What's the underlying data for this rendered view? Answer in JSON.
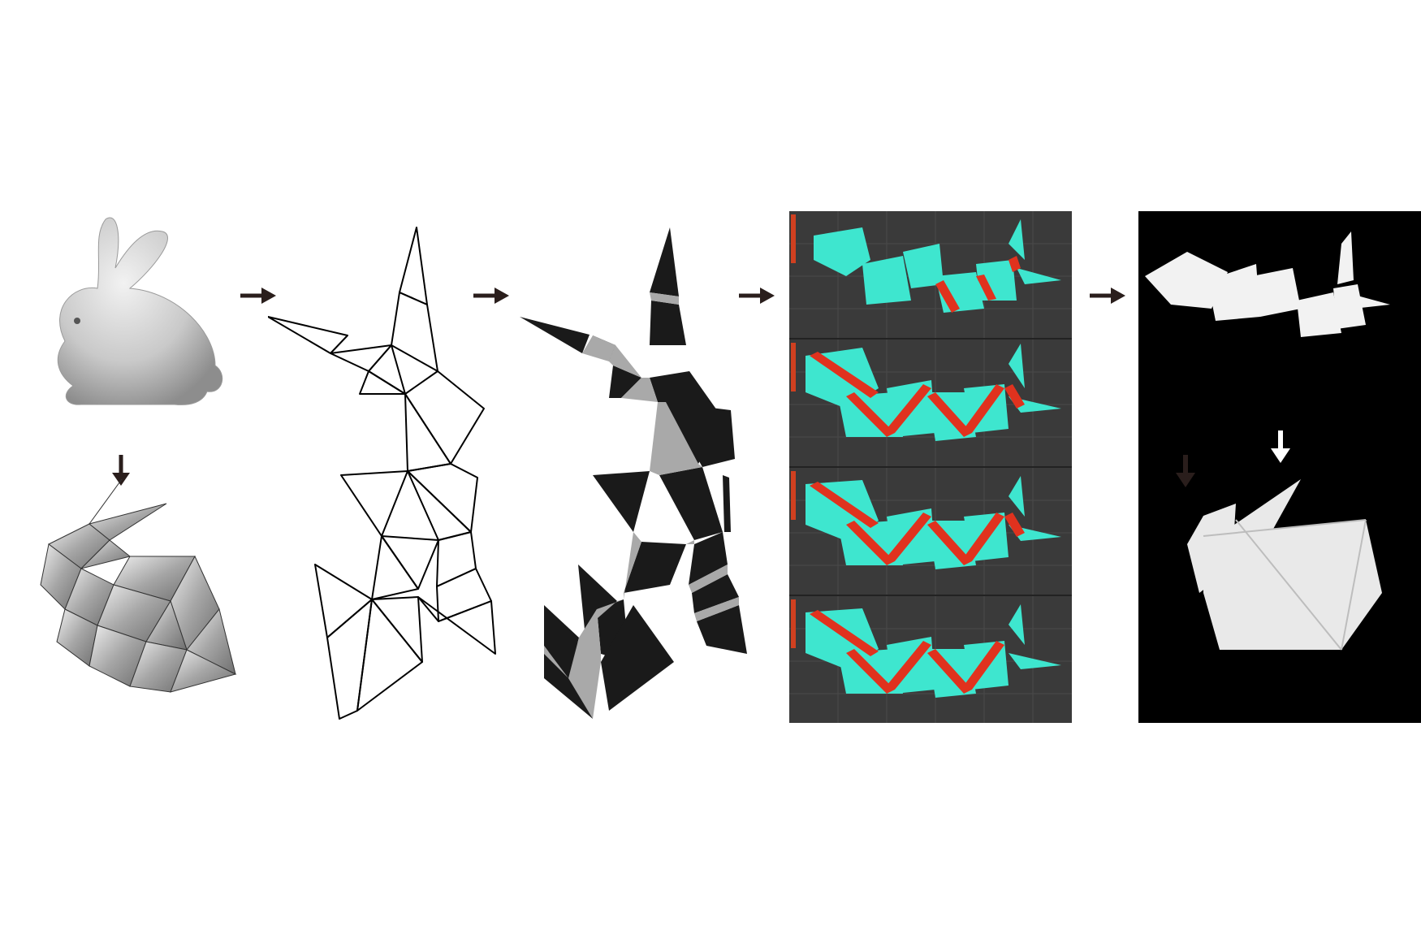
{
  "figure": {
    "stages": [
      {
        "id": "stanford-bunny-mesh",
        "icon": "bunny-render-icon"
      },
      {
        "id": "low-poly-bunny",
        "icon": "low-poly-model-icon"
      },
      {
        "id": "unfolded-net",
        "icon": "crease-pattern-icon"
      },
      {
        "id": "hinge-pattern",
        "icon": "hinge-pattern-icon"
      },
      {
        "id": "folding-simulation",
        "icon": "simulation-icon",
        "frames": 4
      },
      {
        "id": "printed-result",
        "icon": "photo-icon"
      }
    ],
    "colors": {
      "mesh_gray": "#bdbdbd",
      "panel_black": "#1a1a1a",
      "hinge_gray": "#a9a9a9",
      "sim_background": "#3a3a3a",
      "sim_face": "#3ee6cf",
      "sim_hinge": "#e0321e",
      "arrow": "#2a1e1c"
    }
  }
}
